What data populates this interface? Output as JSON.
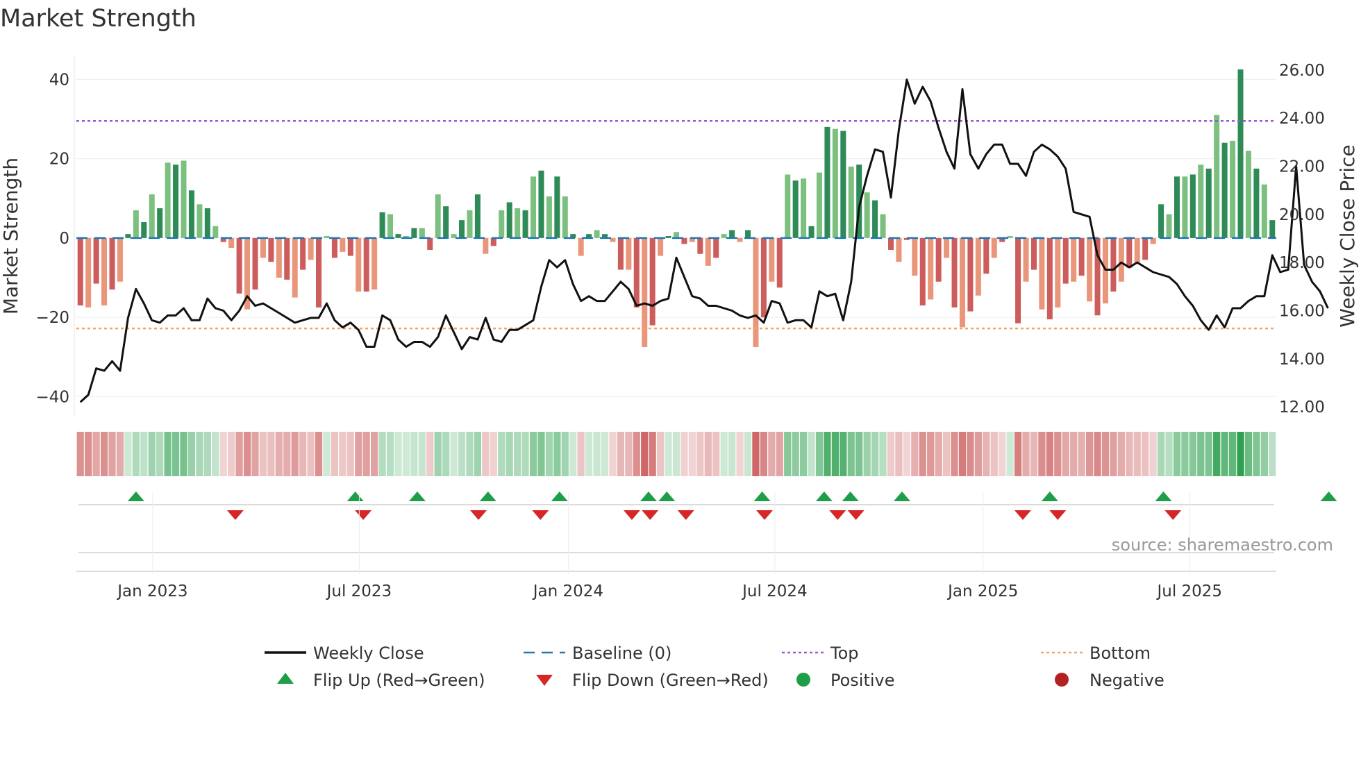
{
  "chart_data": {
    "type": "bar",
    "title": "Market Strength",
    "ylabel": "Market Strength",
    "y2label": "Weekly Close Price",
    "ylim": [
      -45,
      46
    ],
    "y2lim": [
      11.6,
      26.6
    ],
    "yticks": [
      40,
      20,
      0,
      -20,
      -40
    ],
    "ytick_labels": [
      "40",
      "20",
      "0",
      "−20",
      "−40"
    ],
    "y2ticks": [
      26,
      24,
      22,
      20,
      18,
      16,
      14,
      12
    ],
    "y2tick_labels": [
      "26.00",
      "24.00",
      "22.00",
      "20.00",
      "18.00",
      "16.00",
      "14.00",
      "12.00"
    ],
    "top_threshold": 29.5,
    "bottom_threshold": -22.8,
    "baseline": 0,
    "xtick_labels": [
      "Jan 2023",
      "Jul 2023",
      "Jan 2024",
      "Jul 2024",
      "Jan 2025",
      "Jul 2025"
    ],
    "xtick_index": [
      9.1,
      35.1,
      61.4,
      87.4,
      113.6,
      139.6
    ],
    "strength": [
      -17,
      -17.5,
      -11.5,
      -17,
      -13,
      -11,
      1,
      7,
      4,
      11,
      7.5,
      19,
      18.5,
      19.5,
      12,
      8.5,
      7.5,
      3,
      -1,
      -2.5,
      -14,
      -18,
      -13,
      -5,
      -6,
      -10,
      -10.5,
      -15,
      -8,
      -5.5,
      -17.5,
      0.5,
      -5,
      -3.5,
      -4.5,
      -13.5,
      -13.5,
      -13,
      6.5,
      6,
      1,
      0.5,
      2.5,
      2.5,
      -3,
      11,
      8,
      1,
      4.5,
      7,
      11,
      -4,
      -2,
      7,
      9,
      7.5,
      7,
      15.5,
      17,
      10.5,
      15.5,
      10.5,
      1,
      -4.5,
      1,
      2,
      1,
      -1,
      -8,
      -8,
      -17.5,
      -27.5,
      -22,
      -4.5,
      0.5,
      1.5,
      -1.5,
      -1,
      -4,
      -7,
      -5,
      1,
      2,
      -1,
      2,
      -27.5,
      -20,
      -11,
      -12.5,
      16,
      14.5,
      15,
      3,
      16.5,
      28,
      27.5,
      27,
      18,
      18.5,
      11.5,
      9.5,
      6,
      -3,
      -6,
      -0.5,
      -9.5,
      -17,
      -15.5,
      -11,
      -5,
      -17.5,
      -22.5,
      -18.5,
      -14.5,
      -9,
      -5,
      -1,
      0.5,
      -21.5,
      -11,
      -8,
      -18,
      -20.5,
      -17.5,
      -11.5,
      -11,
      -9.5,
      -16,
      -19.5,
      -16.5,
      -13.5,
      -11,
      -7.5,
      -6.5,
      -5.5,
      -1.5,
      8.5,
      6,
      15.5,
      15.5,
      16,
      18.5,
      17.5,
      31,
      24,
      24.5,
      42.5,
      22,
      17.5,
      13.5,
      4.5
    ],
    "weekly_close": [
      12.2,
      12.5,
      13.6,
      13.5,
      13.9,
      13.5,
      15.7,
      16.9,
      16.3,
      15.6,
      15.5,
      15.8,
      15.8,
      16.1,
      15.6,
      15.6,
      16.5,
      16.1,
      16,
      15.6,
      16,
      16.6,
      16.2,
      16.3,
      16.1,
      15.9,
      15.7,
      15.5,
      15.6,
      15.7,
      15.7,
      16.3,
      15.6,
      15.3,
      15.5,
      15.2,
      14.5,
      14.5,
      15.8,
      15.6,
      14.8,
      14.5,
      14.7,
      14.7,
      14.5,
      14.9,
      15.8,
      15.1,
      14.4,
      14.9,
      14.8,
      15.7,
      14.8,
      14.7,
      15.2,
      15.2,
      15.4,
      15.6,
      17,
      18.1,
      17.8,
      18.1,
      17.1,
      16.4,
      16.6,
      16.4,
      16.4,
      16.8,
      17.2,
      16.9,
      16.2,
      16.3,
      16.2,
      16.4,
      16.5,
      18.2,
      17.4,
      16.6,
      16.5,
      16.2,
      16.2,
      16.1,
      16,
      15.8,
      15.7,
      15.8,
      15.5,
      16.4,
      16.3,
      15.5,
      15.6,
      15.6,
      15.3,
      16.8,
      16.6,
      16.7,
      15.6,
      17.2,
      20.3,
      21.6,
      22.7,
      22.6,
      20.7,
      23.5,
      25.6,
      24.6,
      25.3,
      24.7,
      23.6,
      22.6,
      21.9,
      25.2,
      22.5,
      21.9,
      22.5,
      22.9,
      22.9,
      22.1,
      22.1,
      21.6,
      22.6,
      22.9,
      22.7,
      22.4,
      21.9,
      20.1,
      20,
      19.9,
      18.3,
      17.7,
      17.7,
      18,
      17.8,
      18,
      17.8,
      17.6,
      17.5,
      17.4,
      17.1,
      16.6,
      16.2,
      15.6,
      15.2,
      15.8,
      15.3,
      16.1,
      16.1,
      16.4,
      16.6,
      16.6,
      18.3,
      17.6,
      17.7,
      22,
      17.9,
      17.2,
      16.8,
      16.1
    ],
    "flip_up_index": [
      7,
      34.6,
      42.4,
      51.3,
      60.3,
      71.5,
      73.8,
      85.8,
      93.6,
      96.9,
      103.4,
      122,
      136.3,
      157.1
    ],
    "flip_down_index": [
      19.5,
      35.6,
      50.1,
      57.9,
      69.4,
      71.7,
      76.2,
      86.1,
      95.3,
      97.6,
      118.6,
      123,
      137.5
    ],
    "legend": [
      "Weekly Close",
      "Baseline (0)",
      "Top",
      "Bottom",
      "Flip Up (Red→Green)",
      "Flip Down (Green→Red)",
      "Positive",
      "Negative"
    ]
  },
  "source_text": "source: sharemaestro.com",
  "colors": {
    "pos_strong": "#2e8b57",
    "pos_light": "#7cc07f",
    "neg_strong": "#cd5c5c",
    "neg_light": "#e9967a",
    "line": "#111111",
    "baseline": "#1f77b4",
    "top": "#9b59d0",
    "bottom": "#f4a460",
    "flip_up": "#1e9e48",
    "flip_down": "#d62728",
    "positive_dot": "#1e9e48",
    "negative_dot": "#b22222"
  }
}
